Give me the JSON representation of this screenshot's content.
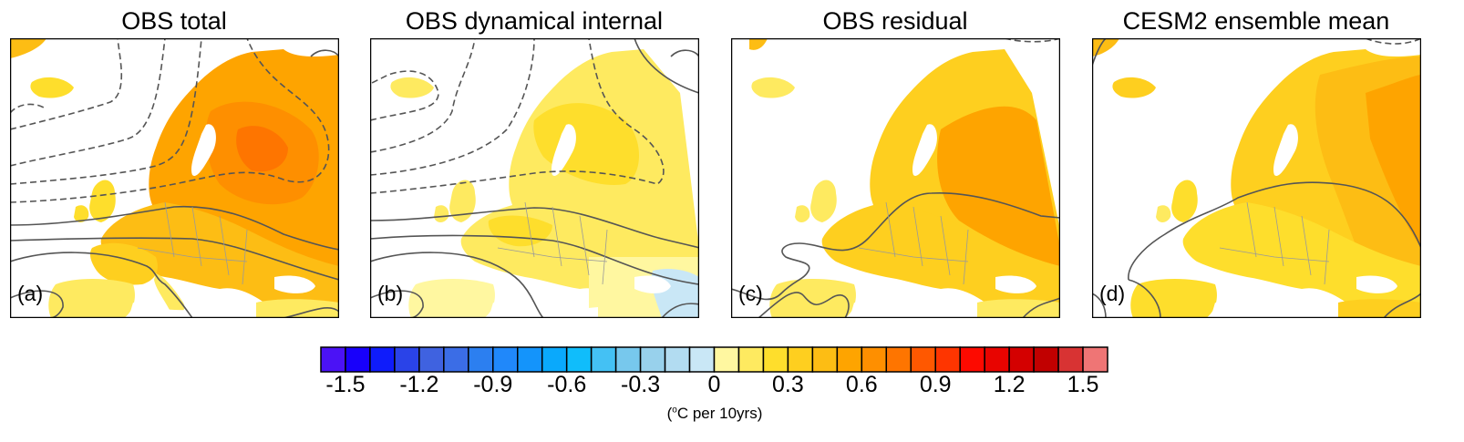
{
  "chart_data": {
    "type": "heatmap",
    "description": "Four map panels of European surface temperature trend with overlaid contour lines (solid positive, dashed negative)",
    "panels": [
      {
        "id": "a",
        "title": "OBS total",
        "label": "(a)",
        "max_trend_approx": 0.9,
        "region_max": "NW Russia / Finland",
        "contours": "dashed lows in north Atlantic and over Scandinavia/Russia; solid lines over central Europe and Iberia"
      },
      {
        "id": "b",
        "title": "OBS dynamical internal",
        "label": "(b)",
        "max_trend_approx": 0.3,
        "region_max": "Scandinavia / central Europe",
        "negative_region": "Black Sea / Caucasus",
        "contours": "similar pattern to (a)"
      },
      {
        "id": "c",
        "title": "OBS residual",
        "label": "(c)",
        "max_trend_approx": 0.7,
        "region_max": "western Russia",
        "contours": "single solid line across Europe; solid loops over Iberia"
      },
      {
        "id": "d",
        "title": "CESM2 ensemble mean",
        "label": "(d)",
        "max_trend_approx": 0.7,
        "region_max": "NW Russia",
        "contours": "single solid arc across Europe"
      }
    ],
    "colorbar": {
      "levels": [
        -1.5,
        -1.4,
        -1.3,
        -1.2,
        -1.1,
        -1.0,
        -0.9,
        -0.8,
        -0.7,
        -0.6,
        -0.5,
        -0.4,
        -0.3,
        -0.2,
        -0.1,
        0,
        0.1,
        0.2,
        0.3,
        0.4,
        0.5,
        0.6,
        0.7,
        0.8,
        0.9,
        1.0,
        1.1,
        1.2,
        1.3,
        1.4,
        1.5
      ],
      "tick_labels": [
        "-1.5",
        "-1.2",
        "-0.9",
        "-0.6",
        "-0.3",
        "0",
        "0.3",
        "0.6",
        "0.9",
        "1.2",
        "1.5"
      ],
      "colors": [
        "#4b12f6",
        "#1800fb",
        "#0f1cfb",
        "#2a43e8",
        "#3f62e0",
        "#3b6de6",
        "#2c7ff0",
        "#2088fa",
        "#1494fb",
        "#0aa9fc",
        "#10bdfb",
        "#44c1f4",
        "#77c8ed",
        "#98d1ec",
        "#b2dcf1",
        "#c9e7f6",
        "#fff7a0",
        "#feea60",
        "#fede2c",
        "#fecf1f",
        "#fdbd14",
        "#fea400",
        "#fe8f00",
        "#fe7500",
        "#ff5800",
        "#fe3500",
        "#fd0a00",
        "#e80400",
        "#d40000",
        "#c10000",
        "#d83333",
        "#ef7575"
      ],
      "units": "(°C per 10yrs)"
    }
  },
  "panels": [
    {
      "title": "OBS total",
      "label": "(a)"
    },
    {
      "title": "OBS dynamical internal",
      "label": "(b)"
    },
    {
      "title": "OBS residual",
      "label": "(c)"
    },
    {
      "title": "CESM2 ensemble mean",
      "label": "(d)"
    }
  ],
  "colorbar": {
    "ticks": [
      "-1.5",
      "-1.2",
      "-0.9",
      "-0.6",
      "-0.3",
      "0",
      "0.3",
      "0.6",
      "0.9",
      "1.2",
      "1.5"
    ],
    "units_prefix": "(",
    "units_sup": "o",
    "units_suffix": "C per 10yrs)"
  }
}
